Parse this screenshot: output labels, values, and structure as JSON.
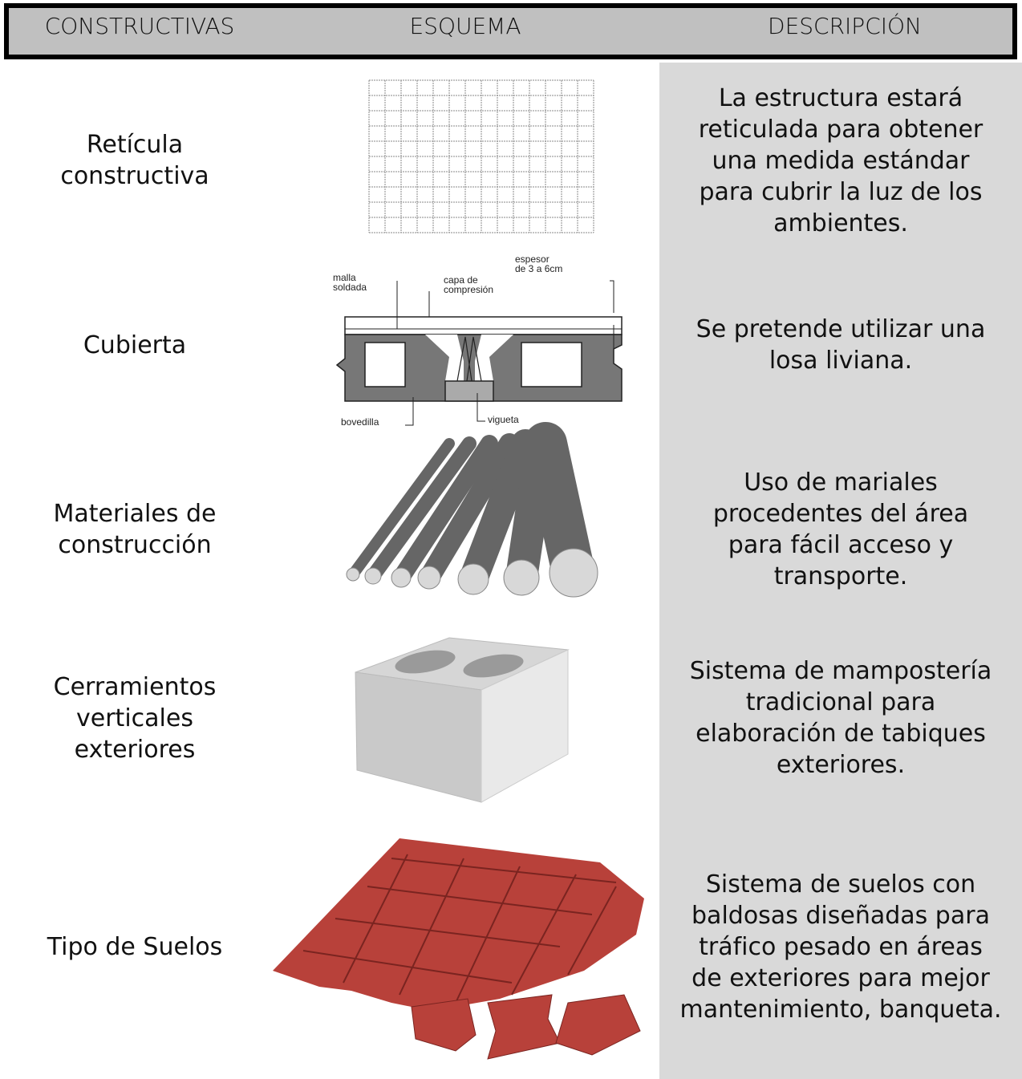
{
  "header": {
    "columns": [
      "CONSTRUCTIVAS",
      "ESQUEMA",
      "DESCRIPCIÓN"
    ]
  },
  "rows": [
    {
      "label": [
        "Retícula",
        "constructiva"
      ],
      "description": [
        "La estructura estará",
        "reticulada para obtener",
        "una medida estándar",
        "para cubrir la luz de los",
        "ambientes."
      ]
    },
    {
      "label": [
        "Cubierta"
      ],
      "description": [
        "Se pretende utilizar una",
        "losa liviana."
      ]
    },
    {
      "label": [
        "Materiales de",
        "construcción"
      ],
      "description": [
        "Uso de mariales",
        "procedentes del área",
        "para fácil acceso y",
        "transporte."
      ]
    },
    {
      "label": [
        "Cerramientos",
        "verticales",
        "exteriores"
      ],
      "description": [
        "Sistema de mampostería",
        "tradicional para",
        "elaboración de tabiques",
        "exteriores."
      ]
    },
    {
      "label": [
        "Tipo de Suelos"
      ],
      "description": [
        "Sistema de suelos con",
        "baldosas diseñadas para",
        "tráfico pesado en áreas",
        "de exteriores para mejor",
        "mantenimiento, banqueta."
      ]
    }
  ],
  "slab_labels": [
    [
      "malla",
      "soldada"
    ],
    [
      "capa de",
      "compresión"
    ],
    [
      "espesor",
      "de 3 a 6cm"
    ],
    [
      "bovedilla"
    ],
    [
      "vigueta"
    ]
  ]
}
